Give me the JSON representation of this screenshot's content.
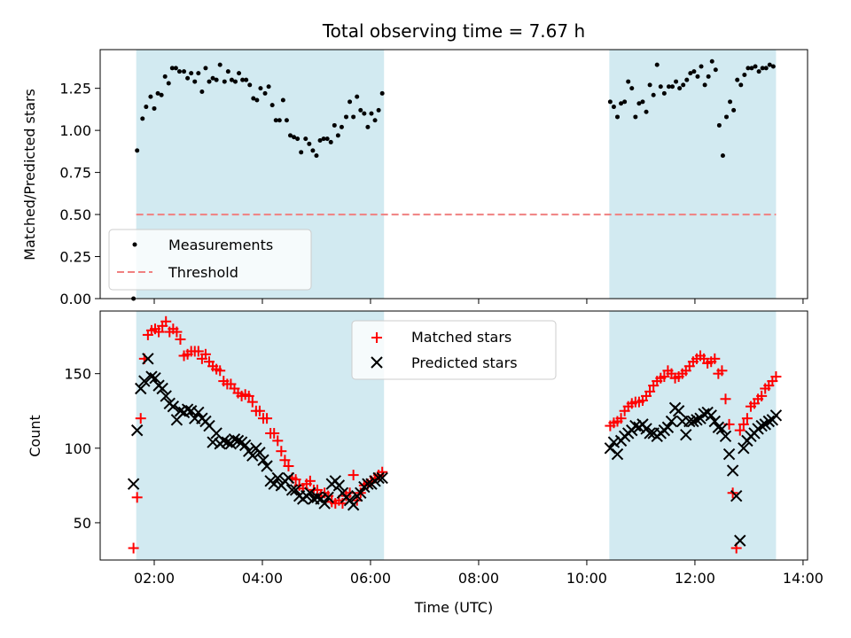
{
  "chart_data": [
    {
      "type": "scatter",
      "title": "Total observing time = 7.67 h",
      "xlabel": "",
      "ylabel": "Matched/Predicted stars",
      "xlim": [
        "01:00",
        "14:05"
      ],
      "ylim": [
        0,
        1.48
      ],
      "yticks": [
        0.0,
        0.25,
        0.5,
        0.75,
        1.0,
        1.25
      ],
      "ytick_labels": [
        "0.00",
        "0.25",
        "0.50",
        "0.75",
        "1.00",
        "1.25"
      ],
      "legend_position": "lower-left",
      "shaded_intervals": [
        [
          "01:40",
          "06:15"
        ],
        [
          "10:25",
          "13:30"
        ]
      ],
      "shade_color": "#add8e6",
      "series": [
        {
          "name": "Measurements",
          "marker": "dot",
          "color": "#000000",
          "x": [
            "01:37",
            "01:41",
            "01:47",
            "01:51",
            "01:56",
            "02:00",
            "02:04",
            "02:08",
            "02:12",
            "02:16",
            "02:20",
            "02:24",
            "02:28",
            "02:33",
            "02:37",
            "02:41",
            "02:45",
            "02:49",
            "02:53",
            "02:57",
            "03:01",
            "03:05",
            "03:09",
            "03:13",
            "03:18",
            "03:22",
            "03:26",
            "03:30",
            "03:34",
            "03:38",
            "03:42",
            "03:46",
            "03:50",
            "03:54",
            "03:58",
            "04:03",
            "04:07",
            "04:11",
            "04:15",
            "04:19",
            "04:23",
            "04:27",
            "04:31",
            "04:35",
            "04:39",
            "04:43",
            "04:48",
            "04:52",
            "04:56",
            "05:00",
            "05:04",
            "05:08",
            "05:12",
            "05:16",
            "05:20",
            "05:24",
            "05:28",
            "05:33",
            "05:37",
            "05:41",
            "05:45",
            "05:49",
            "05:53",
            "05:57",
            "06:01",
            "06:05",
            "06:09",
            "06:13",
            "10:26",
            "10:30",
            "10:34",
            "10:38",
            "10:42",
            "10:46",
            "10:50",
            "10:54",
            "10:58",
            "11:02",
            "11:06",
            "11:10",
            "11:14",
            "11:18",
            "11:22",
            "11:26",
            "11:31",
            "11:35",
            "11:39",
            "11:43",
            "11:47",
            "11:51",
            "11:55",
            "11:59",
            "12:03",
            "12:07",
            "12:11",
            "12:15",
            "12:19",
            "12:23",
            "12:27",
            "12:31",
            "12:35",
            "12:39",
            "12:43",
            "12:47",
            "12:51",
            "12:55",
            "12:59",
            "13:03",
            "13:07",
            "13:11",
            "13:15",
            "13:19",
            "13:23",
            "13:27"
          ],
          "y": [
            0.0,
            0.88,
            1.07,
            1.14,
            1.2,
            1.13,
            1.22,
            1.21,
            1.32,
            1.28,
            1.37,
            1.37,
            1.35,
            1.35,
            1.31,
            1.34,
            1.29,
            1.34,
            1.23,
            1.37,
            1.29,
            1.31,
            1.3,
            1.39,
            1.29,
            1.35,
            1.3,
            1.29,
            1.34,
            1.3,
            1.3,
            1.27,
            1.19,
            1.18,
            1.25,
            1.22,
            1.26,
            1.15,
            1.06,
            1.06,
            1.18,
            1.06,
            0.97,
            0.96,
            0.95,
            0.87,
            0.95,
            0.92,
            0.88,
            0.85,
            0.94,
            0.95,
            0.95,
            0.93,
            1.03,
            0.97,
            1.02,
            1.08,
            1.17,
            1.08,
            1.2,
            1.12,
            1.1,
            1.02,
            1.1,
            1.06,
            1.12,
            1.22,
            1.17,
            1.14,
            1.08,
            1.16,
            1.17,
            1.29,
            1.25,
            1.08,
            1.16,
            1.17,
            1.11,
            1.27,
            1.21,
            1.39,
            1.26,
            1.22,
            1.26,
            1.26,
            1.29,
            1.25,
            1.27,
            1.3,
            1.34,
            1.35,
            1.32,
            1.38,
            1.27,
            1.32,
            1.41,
            1.36,
            1.03,
            0.85,
            1.08,
            1.17,
            1.12,
            1.3,
            1.27,
            1.33,
            1.37,
            1.37,
            1.38,
            1.35,
            1.37,
            1.37,
            1.39,
            1.38
          ]
        },
        {
          "name": "Threshold",
          "marker": "dashed-line",
          "color": "#f08080",
          "x": [
            "01:40",
            "13:30"
          ],
          "y": [
            0.5,
            0.5
          ]
        }
      ]
    },
    {
      "type": "scatter",
      "title": "",
      "xlabel": "Time (UTC)",
      "ylabel": "Count",
      "xlim": [
        "01:00",
        "14:05"
      ],
      "ylim": [
        25,
        192
      ],
      "yticks": [
        50,
        100,
        150
      ],
      "ytick_labels": [
        "50",
        "100",
        "150"
      ],
      "xticks": [
        "02:00",
        "04:00",
        "06:00",
        "08:00",
        "10:00",
        "12:00",
        "14:00"
      ],
      "xtick_labels": [
        "02:00",
        "04:00",
        "06:00",
        "08:00",
        "10:00",
        "12:00",
        "14:00"
      ],
      "legend_position": "top-center",
      "shaded_intervals": [
        [
          "01:40",
          "06:15"
        ],
        [
          "10:25",
          "13:30"
        ]
      ],
      "shade_color": "#add8e6",
      "series": [
        {
          "name": "Matched stars",
          "marker": "plus",
          "color": "#ff0000",
          "x": [
            "01:37",
            "01:41",
            "01:45",
            "01:49",
            "01:53",
            "01:57",
            "02:01",
            "02:05",
            "02:09",
            "02:13",
            "02:17",
            "02:21",
            "02:25",
            "02:29",
            "02:33",
            "02:37",
            "02:41",
            "02:45",
            "02:49",
            "02:53",
            "02:57",
            "03:01",
            "03:05",
            "03:09",
            "03:13",
            "03:17",
            "03:21",
            "03:25",
            "03:29",
            "03:33",
            "03:37",
            "03:41",
            "03:45",
            "03:49",
            "03:53",
            "03:57",
            "04:01",
            "04:05",
            "04:09",
            "04:13",
            "04:17",
            "04:21",
            "04:25",
            "04:29",
            "04:33",
            "04:37",
            "04:41",
            "04:45",
            "04:49",
            "04:53",
            "04:57",
            "05:01",
            "05:05",
            "05:09",
            "05:13",
            "05:17",
            "05:21",
            "05:25",
            "05:29",
            "05:33",
            "05:37",
            "05:41",
            "05:45",
            "05:49",
            "05:53",
            "05:57",
            "06:01",
            "06:05",
            "06:09",
            "06:13",
            "10:26",
            "10:30",
            "10:34",
            "10:38",
            "10:42",
            "10:46",
            "10:50",
            "10:54",
            "10:58",
            "11:02",
            "11:06",
            "11:10",
            "11:14",
            "11:18",
            "11:22",
            "11:26",
            "11:30",
            "11:34",
            "11:38",
            "11:42",
            "11:46",
            "11:50",
            "11:54",
            "11:58",
            "12:02",
            "12:06",
            "12:10",
            "12:14",
            "12:18",
            "12:22",
            "12:26",
            "12:30",
            "12:34",
            "12:38",
            "12:42",
            "12:46",
            "12:50",
            "12:54",
            "12:58",
            "13:02",
            "13:06",
            "13:10",
            "13:14",
            "13:18",
            "13:22",
            "13:26",
            "13:30"
          ],
          "y": [
            33,
            67,
            120,
            160,
            176,
            179,
            180,
            178,
            182,
            185,
            178,
            180,
            178,
            173,
            162,
            163,
            165,
            165,
            165,
            160,
            163,
            158,
            155,
            153,
            152,
            145,
            143,
            143,
            140,
            137,
            135,
            136,
            135,
            131,
            125,
            125,
            120,
            120,
            110,
            110,
            105,
            98,
            92,
            88,
            80,
            79,
            75,
            73,
            76,
            78,
            72,
            72,
            68,
            70,
            68,
            64,
            63,
            65,
            63,
            68,
            70,
            82,
            65,
            70,
            75,
            76,
            78,
            80,
            82,
            84,
            115,
            117,
            118,
            120,
            125,
            128,
            130,
            131,
            131,
            132,
            135,
            138,
            142,
            145,
            147,
            148,
            152,
            150,
            147,
            148,
            150,
            152,
            155,
            158,
            160,
            162,
            160,
            157,
            158,
            160,
            150,
            152,
            133,
            116,
            70,
            33,
            112,
            116,
            120,
            128,
            130,
            133,
            135,
            140,
            142,
            145,
            148
          ],
          "_note_": "ignored"
        },
        {
          "name": "Predicted stars",
          "marker": "x",
          "color": "#000000",
          "x": [],
          "y": []
        }
      ]
    }
  ]
}
